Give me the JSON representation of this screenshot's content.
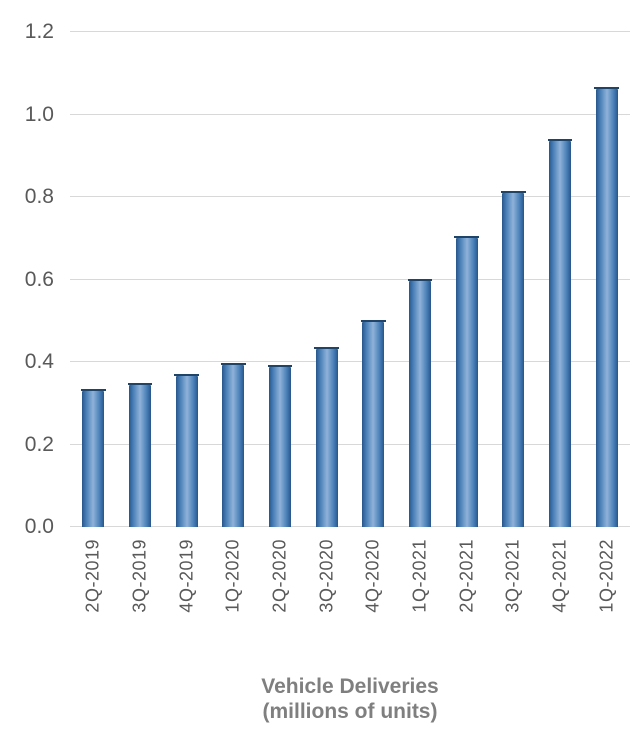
{
  "chart_data": {
    "type": "bar",
    "title_line1": "Vehicle Deliveries",
    "title_line2": "(millions of units)",
    "categories": [
      "2Q-2019",
      "3Q-2019",
      "4Q-2019",
      "1Q-2020",
      "2Q-2020",
      "3Q-2020",
      "4Q-2020",
      "1Q-2021",
      "2Q-2021",
      "3Q-2021",
      "4Q-2021",
      "1Q-2022"
    ],
    "values": [
      0.33,
      0.345,
      0.367,
      0.393,
      0.388,
      0.431,
      0.497,
      0.597,
      0.701,
      0.81,
      0.936,
      1.062
    ],
    "xlabel": "",
    "ylabel": "",
    "ylim": [
      0,
      1.2
    ],
    "yticks": [
      "0.0",
      "0.2",
      "0.4",
      "0.6",
      "0.8",
      "1.0",
      "1.2"
    ],
    "grid": true,
    "legend": false,
    "error_bars": true,
    "colors": {
      "bar_edge": "#27558a",
      "bar_mid": "#8fb2d9",
      "bar_cap": "#1f4468",
      "axis_label": "#595959",
      "title": "#7f7f7f",
      "gridline": "#d8d8d8",
      "background": "#ffffff"
    }
  }
}
